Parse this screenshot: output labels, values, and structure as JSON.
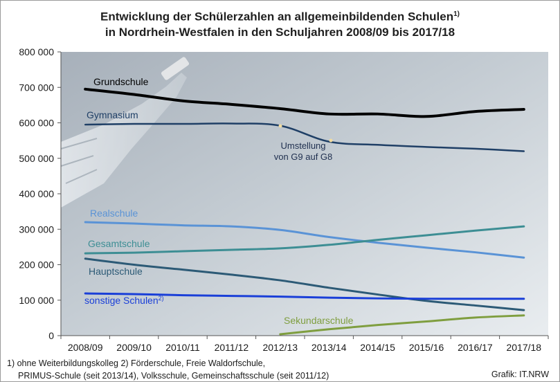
{
  "title_line1": "Entwicklung der Schülerzahlen an allgemeinbildenden Schulen",
  "title_sup": "1)",
  "title_line2": "in Nordrhein-Westfalen in den Schuljahren 2008/09 bis 2017/18",
  "footnote_line1": "1) ohne Weiterbildungskolleg 2) Förderschule, Freie Waldorfschule,",
  "footnote_line2": "PRIMUS-Schule (seit 2013/14), Volksschule, Gemeinschaftsschule (seit 2011/12)",
  "credit": "Grafik: IT.NRW",
  "chart_data": {
    "type": "line",
    "categories": [
      "2008/09",
      "2009/10",
      "2010/11",
      "2011/12",
      "2012/13",
      "2013/14",
      "2014/15",
      "2015/16",
      "2016/17",
      "2017/18"
    ],
    "ylim": [
      0,
      800000
    ],
    "yticks": [
      0,
      100000,
      200000,
      300000,
      400000,
      500000,
      600000,
      700000,
      800000
    ],
    "ytick_labels": [
      "0",
      "100 000",
      "200 000",
      "300 000",
      "400 000",
      "500 000",
      "600 000",
      "700 000",
      "800 000"
    ],
    "grid": false,
    "series": [
      {
        "name": "Grundschule",
        "color": "#000000",
        "width": 4,
        "values": [
          695000,
          680000,
          662000,
          652000,
          640000,
          625000,
          625000,
          618000,
          632000,
          638000
        ]
      },
      {
        "name": "Gymnasium",
        "color": "#1f3f66",
        "width": 2.5,
        "values": [
          595000,
          597000,
          597000,
          598000,
          592000,
          547000,
          538000,
          532000,
          527000,
          520000
        ]
      },
      {
        "name": "Realschule",
        "color": "#5a93d6",
        "width": 3,
        "values": [
          320000,
          316000,
          311000,
          308000,
          298000,
          278000,
          262000,
          248000,
          235000,
          220000
        ]
      },
      {
        "name": "Gesamtschule",
        "color": "#3d8e94",
        "width": 3,
        "values": [
          232000,
          234000,
          238000,
          242000,
          246000,
          256000,
          270000,
          283000,
          296000,
          308000
        ]
      },
      {
        "name": "Hauptschule",
        "color": "#2c5a76",
        "width": 3,
        "values": [
          217000,
          200000,
          186000,
          172000,
          156000,
          135000,
          116000,
          98000,
          85000,
          72000
        ]
      },
      {
        "name": "sonstige Schulen",
        "label_sup": "2)",
        "color": "#1a3fd8",
        "width": 3,
        "values": [
          119000,
          117000,
          114000,
          112000,
          110000,
          107000,
          105000,
          104000,
          104000,
          104000
        ]
      },
      {
        "name": "Sekundarschule",
        "color": "#7f9e3f",
        "width": 3,
        "start_index": 4,
        "values": [
          null,
          null,
          null,
          null,
          4000,
          18000,
          30000,
          40000,
          51000,
          57000
        ]
      }
    ],
    "annotations": [
      {
        "text_line1": "Umstellung",
        "text_line2": "von G9 auf G8"
      }
    ]
  }
}
